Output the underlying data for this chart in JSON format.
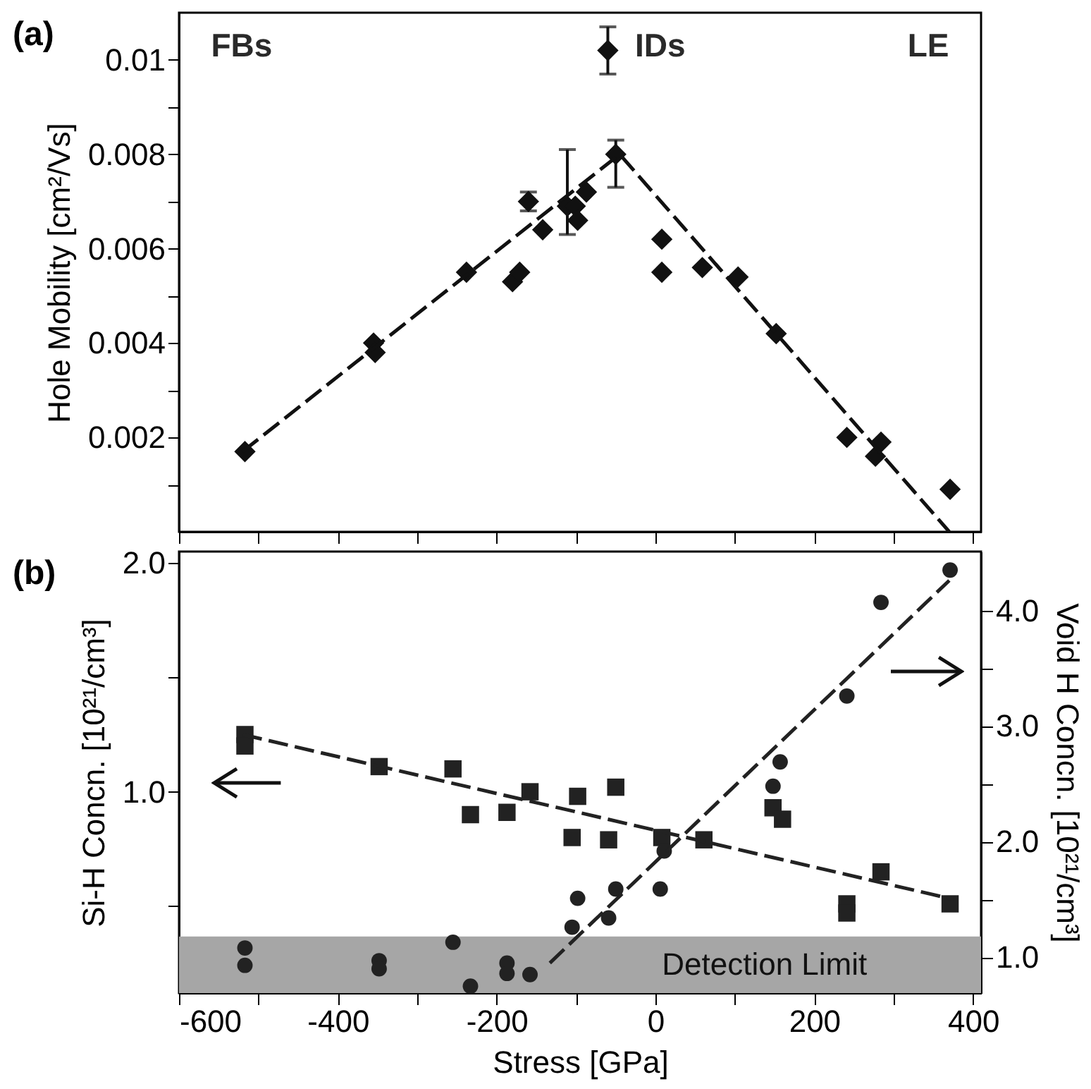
{
  "chart_data": [
    {
      "type": "scatter",
      "title": "(a)",
      "ylabel": "Hole Mobility [cm²/Vs]",
      "xlim": [
        -600,
        410
      ],
      "ylim": [
        0,
        0.011
      ],
      "xticks": [
        -600,
        {
          "value": -500,
          "label": null
        },
        -400,
        {
          "value": -300,
          "label": null
        },
        -200,
        {
          "value": -100,
          "label": null
        },
        0,
        {
          "value": 100,
          "label": null
        },
        200,
        {
          "value": 300,
          "label": null
        },
        400
      ],
      "yticks": [
        {
          "value": 0.001,
          "label": null
        },
        0.002,
        {
          "value": 0.003,
          "label": null
        },
        0.004,
        {
          "value": 0.005,
          "label": null
        },
        0.006,
        {
          "value": 0.007,
          "label": null
        },
        0.008,
        {
          "value": 0.009,
          "label": null
        },
        0.01
      ],
      "tick_labels": "y",
      "annotations": [
        "FBs",
        "IDs",
        "LE"
      ],
      "series": [
        {
          "type": "scatter",
          "marker": "diamond",
          "color": "#111111",
          "x": [
            -517,
            -355,
            -353,
            -238,
            -180,
            -171,
            -160,
            -142,
            -111,
            -101,
            -98,
            -87,
            -60,
            -50,
            8,
            8,
            59,
            104,
            152,
            241,
            277,
            284,
            371
          ],
          "values": [
            0.0017,
            0.004,
            0.0038,
            0.0055,
            0.0053,
            0.0055,
            0.007,
            0.0064,
            0.0069,
            0.0069,
            0.0066,
            0.0072,
            0.0102,
            0.008,
            0.0062,
            0.0055,
            0.0056,
            0.0054,
            0.0042,
            0.002,
            0.0016,
            0.0019,
            0.0009
          ],
          "errors": [
            null,
            null,
            null,
            null,
            null,
            null,
            [
              0.0068,
              0.0072
            ],
            null,
            [
              0.0063,
              0.0081
            ],
            null,
            null,
            null,
            [
              0.0097,
              0.0107
            ],
            [
              0.0073,
              0.0083
            ],
            null,
            null,
            null,
            null,
            null,
            null,
            null,
            null,
            null
          ]
        },
        {
          "type": "line",
          "line_style": "dashed",
          "color": "#111111",
          "x": [
            -520,
            -45,
            370
          ],
          "values": [
            0.0017,
            0.008,
            0
          ]
        }
      ]
    },
    {
      "type": "scatter",
      "title": "(b)",
      "xlabel": "Stress [GPa]",
      "ylabel": "Si-H Concn. [10²¹/cm³]",
      "y2label": "Void H Concn. [10²¹/cm³]",
      "xlim": [
        -600,
        410
      ],
      "ylim": [
        0.12,
        2.05
      ],
      "y2lim": [
        0.69,
        4.51
      ],
      "xticks": [
        -600,
        {
          "value": -500,
          "label": null
        },
        -400,
        {
          "value": -300,
          "label": null
        },
        -200,
        {
          "value": -100,
          "label": null
        },
        0,
        {
          "value": 100,
          "label": null
        },
        200,
        {
          "value": 300,
          "label": null
        },
        400
      ],
      "yticks": [
        {
          "value": 0.5,
          "label": null
        },
        {
          "value": 1,
          "label": "1.0"
        },
        {
          "value": 1.5,
          "label": null
        },
        {
          "value": 2,
          "label": "2.0"
        }
      ],
      "y2ticks": [
        {
          "value": 1,
          "label": "1.0"
        },
        {
          "value": 1.5,
          "label": null
        },
        {
          "value": 2,
          "label": "2.0"
        },
        {
          "value": 2.5,
          "label": null
        },
        {
          "value": 3,
          "label": "3.0"
        },
        {
          "value": 3.5,
          "label": null
        },
        {
          "value": 4,
          "label": "4.0"
        }
      ],
      "bands": [
        {
          "axis": "y2",
          "from": 0.69,
          "to": 1.18,
          "label": "Detection Limit",
          "color": "#a6a6a6"
        }
      ],
      "series": [
        {
          "type": "scatter",
          "marker": "square",
          "color": "#222222",
          "x": [
            -517,
            -517,
            -348,
            -255,
            -233,
            -187,
            -158,
            -105,
            -98,
            -59,
            -50,
            8,
            61,
            148,
            160,
            241,
            241,
            284,
            371
          ],
          "values": [
            1.25,
            1.2,
            1.11,
            1.1,
            0.9,
            0.91,
            1.0,
            0.8,
            0.98,
            0.79,
            1.02,
            0.8,
            0.79,
            0.93,
            0.88,
            0.51,
            0.47,
            0.65,
            0.51
          ]
        },
        {
          "type": "scatter",
          "marker": "circle",
          "axis": "y2",
          "color": "#222222",
          "x": [
            -517,
            -517,
            -348,
            -348,
            -255,
            -233,
            -187,
            -187,
            -158,
            -105,
            -98,
            -59,
            -50,
            6,
            11,
            148,
            157,
            241,
            284,
            371
          ],
          "values": [
            1.08,
            0.93,
            0.97,
            0.9,
            1.13,
            0.75,
            0.95,
            0.86,
            0.85,
            1.26,
            1.51,
            1.34,
            1.59,
            1.59,
            1.92,
            2.48,
            2.69,
            3.26,
            4.07,
            4.35
          ]
        },
        {
          "type": "line",
          "line_style": "dashed",
          "color": "#222222",
          "x": [
            -520,
            375
          ],
          "values": [
            1.25,
            0.53
          ]
        },
        {
          "type": "line",
          "line_style": "dashed",
          "axis": "y2",
          "color": "#222222",
          "x": [
            -133,
            370
          ],
          "values": [
            0.95,
            4.26
          ]
        }
      ]
    }
  ]
}
